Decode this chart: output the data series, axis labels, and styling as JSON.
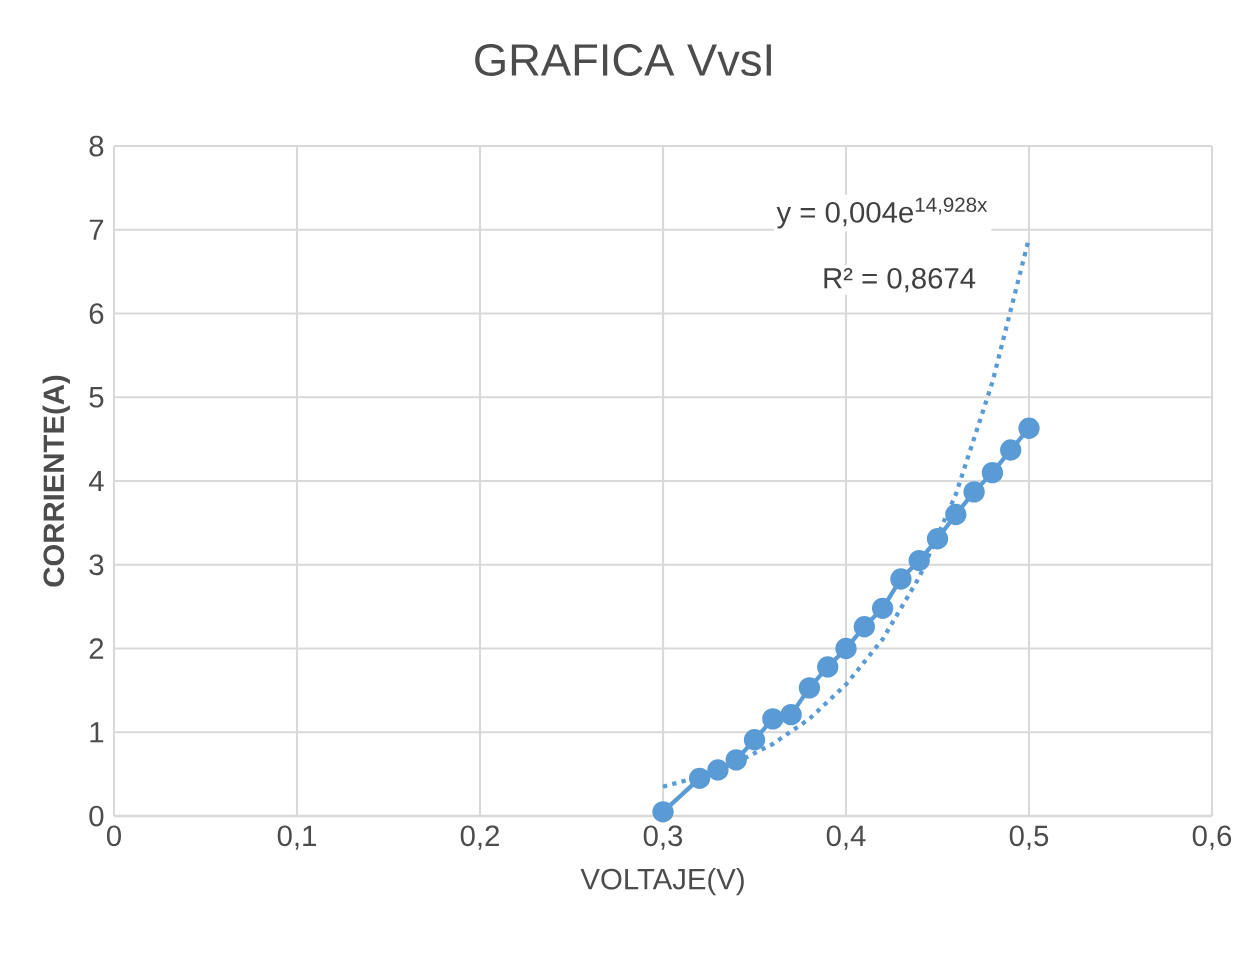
{
  "chart_data": {
    "type": "line",
    "title": "GRAFICA VvsI",
    "xlabel": "VOLTAJE(V)",
    "ylabel": "CORRIENTE(A)",
    "xlim": [
      0,
      0.6
    ],
    "ylim": [
      0,
      8
    ],
    "xticks": [
      0,
      {
        "value": 0.1,
        "label": "0,1"
      },
      {
        "value": 0.2,
        "label": "0,2"
      },
      {
        "value": 0.3,
        "label": "0,3"
      },
      {
        "value": 0.4,
        "label": "0,4"
      },
      {
        "value": 0.5,
        "label": "0,5"
      },
      {
        "value": 0.6,
        "label": "0,6"
      }
    ],
    "yticks": [
      0,
      1,
      2,
      3,
      4,
      5,
      6,
      7,
      8
    ],
    "grid": true,
    "series": [
      {
        "color": "#5b9bd5",
        "marker": "circle",
        "line_style": "solid",
        "x": [
          0.3,
          0.32,
          0.33,
          0.34,
          0.35,
          0.36,
          0.37,
          0.38,
          0.39,
          0.4,
          0.41,
          0.42,
          0.43,
          0.44,
          0.45,
          0.46,
          0.47,
          0.48,
          0.49,
          0.5
        ],
        "values": [
          0.05,
          0.45,
          0.55,
          0.67,
          0.91,
          1.16,
          1.21,
          1.53,
          1.78,
          2.0,
          2.26,
          2.48,
          2.83,
          3.05,
          3.31,
          3.6,
          3.87,
          4.1,
          4.37,
          4.63
        ]
      },
      {
        "type": "line",
        "color": "#5b9bd5",
        "marker": "none",
        "line_style": "dotted",
        "x": [
          0.3,
          0.32,
          0.34,
          0.36,
          0.38,
          0.4,
          0.42,
          0.44,
          0.46,
          0.48,
          0.5
        ],
        "values": [
          0.35,
          0.47,
          0.64,
          0.86,
          1.16,
          1.57,
          2.11,
          2.85,
          3.84,
          5.18,
          6.9
        ]
      }
    ],
    "annotations": [
      "y = 0,004e$^{14,928x}$",
      "R² = 0,8674"
    ]
  }
}
